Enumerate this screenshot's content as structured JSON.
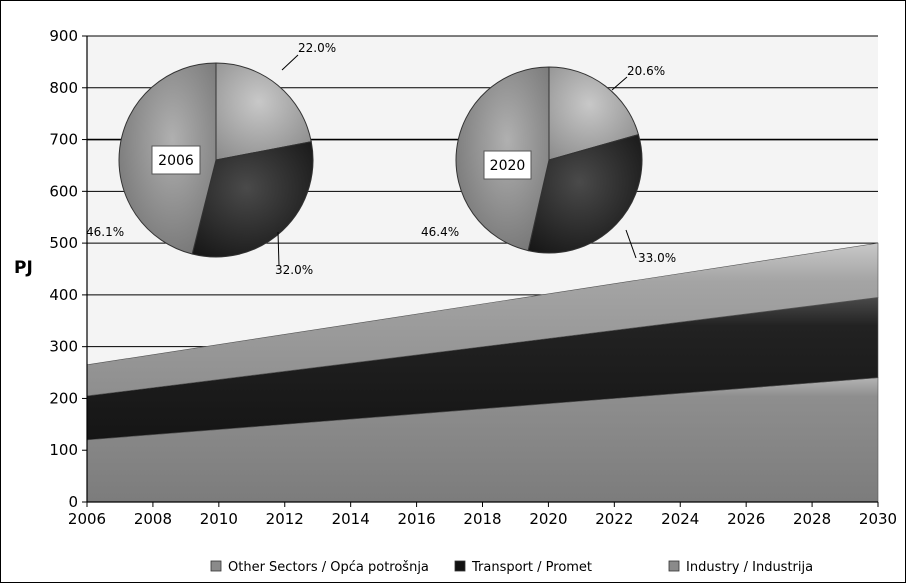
{
  "chart_data": {
    "type": "area",
    "stacked": true,
    "ylabel": "PJ",
    "xlabel": "",
    "ylim": [
      0,
      900
    ],
    "yticks": [
      0,
      100,
      200,
      300,
      400,
      500,
      600,
      700,
      800,
      900
    ],
    "xlim": [
      2006,
      2030
    ],
    "xticks": [
      2006,
      2008,
      2010,
      2012,
      2014,
      2016,
      2018,
      2020,
      2022,
      2024,
      2026,
      2028,
      2030
    ],
    "x": [
      2006,
      2030
    ],
    "series": [
      {
        "name": "Industry / Industrija",
        "values": [
          120,
          240
        ],
        "color": "#8c8c8c"
      },
      {
        "name": "Transport / Promet",
        "values": [
          85,
          155
        ],
        "color": "#1e1e1e"
      },
      {
        "name": "Other Sectors / Opća potrošnja",
        "values": [
          60,
          105
        ],
        "color": "#9a9a9a"
      }
    ],
    "legend": {
      "placement": "bottom",
      "entries": [
        "Other Sectors / Opća potrošnja",
        "Transport / Promet",
        "Industry / Industrija"
      ]
    },
    "grid": true,
    "pies": [
      {
        "label": "2006",
        "slices": [
          {
            "label": "22.0%",
            "value": 22.0,
            "color": "#a6a6a6"
          },
          {
            "label": "32.0%",
            "value": 32.0,
            "color": "#262626"
          },
          {
            "label": "46.1%",
            "value": 46.1,
            "color": "#8c8c8c"
          }
        ]
      },
      {
        "label": "2020",
        "slices": [
          {
            "label": "20.6%",
            "value": 20.6,
            "color": "#a6a6a6"
          },
          {
            "label": "33.0%",
            "value": 33.0,
            "color": "#262626"
          },
          {
            "label": "46.4%",
            "value": 46.4,
            "color": "#8c8c8c"
          }
        ]
      }
    ]
  }
}
